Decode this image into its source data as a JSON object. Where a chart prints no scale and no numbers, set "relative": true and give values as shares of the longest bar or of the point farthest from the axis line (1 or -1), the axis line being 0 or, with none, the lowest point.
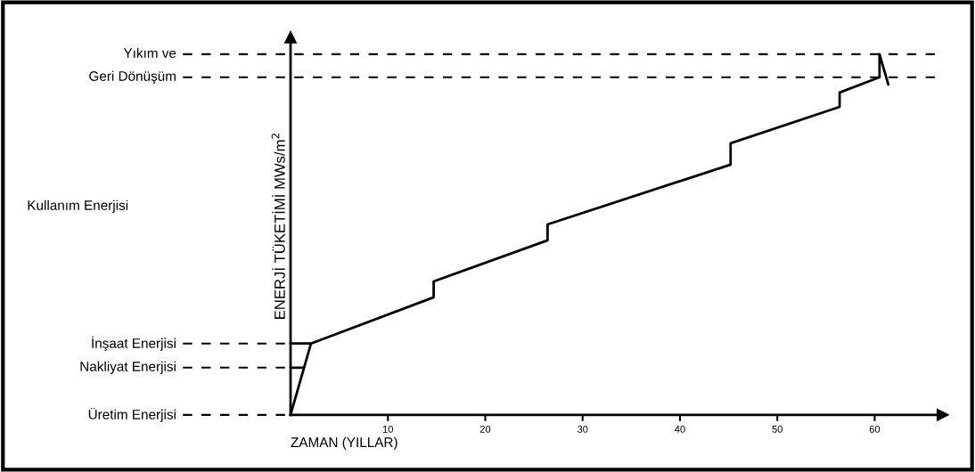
{
  "chart_data": {
    "type": "line",
    "relative": true,
    "xlabel": "ZAMAN (YILLAR)",
    "ylabel": "ENERJİ TÜKETİMİ MWs/m$^{2}$",
    "xlim": [
      0,
      67
    ],
    "xticks": [
      10,
      20,
      30,
      40,
      50,
      60
    ],
    "grid": false,
    "legend": false,
    "marker": "none",
    "line_style": "solid",
    "series": [
      {
        "color": "#000000",
        "x": [
          0,
          2.1,
          14.7,
          14.7,
          26.4,
          26.4,
          45.2,
          45.2,
          56.4,
          56.4,
          60.5,
          60.5,
          61.4
        ],
        "values": [
          0,
          0.198,
          0.326,
          0.37,
          0.484,
          0.528,
          0.694,
          0.753,
          0.854,
          0.894,
          0.936,
          1,
          0.916
        ]
      },
      {
        "color": "#000000",
        "x": [
          0,
          1.39
        ],
        "values": [
          0.131,
          0.131
        ]
      },
      {
        "color": "#000000",
        "x": [
          0,
          2.1
        ],
        "values": [
          0.198,
          0.198
        ]
      }
    ],
    "ref_lines": [
      {
        "axis": "y",
        "value": 1,
        "label": "Yıkım ve",
        "line_style": "dashed"
      },
      {
        "axis": "y",
        "value": 0.936,
        "label": "Geri Dönüşüm",
        "line_style": "dashed"
      },
      {
        "axis": "y",
        "value": 0.198,
        "label": "İnşaat Enerjisi"
      },
      {
        "axis": "y",
        "value": 0.131,
        "label": "Nakliyat Enerjisi"
      },
      {
        "axis": "y",
        "value": 0,
        "label": "Üretim Enerjisi"
      }
    ],
    "annotations": [
      "Kullanım Enerjisi"
    ]
  }
}
